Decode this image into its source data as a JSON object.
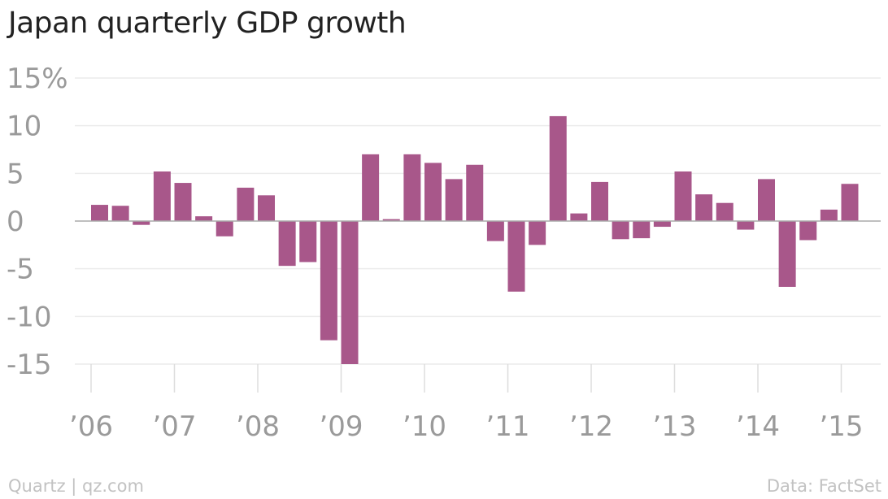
{
  "chart_data": {
    "type": "bar",
    "title": "Japan quarterly GDP growth",
    "xlabel": "",
    "ylabel": "",
    "ylim": [
      -15,
      15
    ],
    "y_ticks": [
      {
        "value": 15,
        "label": "15%"
      },
      {
        "value": 10,
        "label": "10"
      },
      {
        "value": 5,
        "label": "5"
      },
      {
        "value": 0,
        "label": "0"
      },
      {
        "value": -5,
        "label": "-5"
      },
      {
        "value": -10,
        "label": "-10"
      },
      {
        "value": -15,
        "label": "-15"
      }
    ],
    "x_ticks": [
      "’06",
      "’07",
      "’08",
      "’09",
      "’10",
      "’11",
      "’12",
      "’13",
      "’14",
      "’15"
    ],
    "categories": [
      "2006 Q1",
      "2006 Q2",
      "2006 Q3",
      "2006 Q4",
      "2007 Q1",
      "2007 Q2",
      "2007 Q3",
      "2007 Q4",
      "2008 Q1",
      "2008 Q2",
      "2008 Q3",
      "2008 Q4",
      "2009 Q1",
      "2009 Q2",
      "2009 Q3",
      "2009 Q4",
      "2010 Q1",
      "2010 Q2",
      "2010 Q3",
      "2010 Q4",
      "2011 Q1",
      "2011 Q2",
      "2011 Q3",
      "2011 Q4",
      "2012 Q1",
      "2012 Q2",
      "2012 Q3",
      "2012 Q4",
      "2013 Q1",
      "2013 Q2",
      "2013 Q3",
      "2013 Q4",
      "2014 Q1",
      "2014 Q2",
      "2014 Q3",
      "2014 Q4",
      "2015 Q1"
    ],
    "values": [
      1.7,
      1.6,
      -0.4,
      5.2,
      4.0,
      0.5,
      -1.6,
      3.5,
      2.7,
      -4.7,
      -4.3,
      -12.5,
      -15.0,
      7.0,
      0.2,
      7.0,
      6.1,
      4.4,
      5.9,
      -2.1,
      -7.4,
      -2.5,
      11.0,
      0.8,
      4.1,
      -1.9,
      -1.8,
      -0.6,
      5.2,
      2.8,
      1.9,
      -0.9,
      4.4,
      -6.9,
      -2.0,
      1.2,
      3.9
    ],
    "grid": true,
    "colors": {
      "bar": "#a8578a",
      "grid": "#ececec",
      "zero_line": "#aaaaaa",
      "tick_mark": "#dddddd",
      "tick_label": "#9a9a9a"
    }
  },
  "footer": {
    "source_left": "Quartz | qz.com",
    "source_right": "Data: FactSet"
  }
}
